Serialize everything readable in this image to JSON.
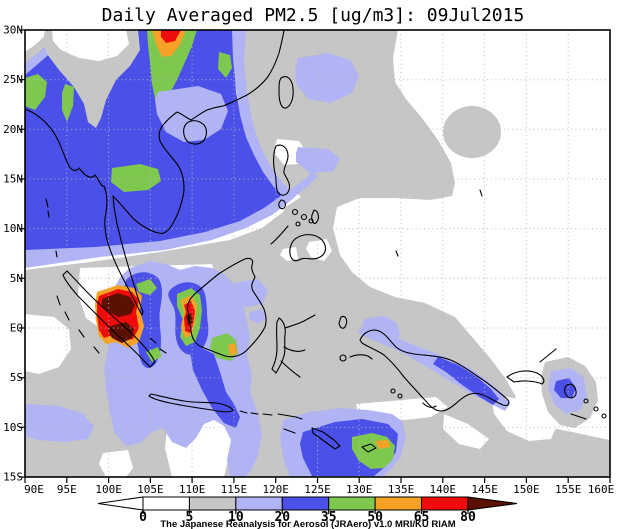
{
  "title": "Daily Averaged PM2.5 [ug/m3]: 09Jul2015",
  "map": {
    "x_axis_labels": [
      "90E",
      "95E",
      "100E",
      "105E",
      "110E",
      "115E",
      "120E",
      "125E",
      "130E",
      "135E",
      "140E",
      "145E",
      "150E",
      "155E",
      "160E"
    ],
    "y_axis_labels": [
      "30N",
      "25N",
      "20N",
      "15N",
      "10N",
      "5N",
      "EQ",
      "5S",
      "10S",
      "15S"
    ]
  },
  "colorbar": {
    "tick_labels": [
      "0",
      "5",
      "10",
      "20",
      "35",
      "50",
      "65",
      "80"
    ],
    "segments": [
      {
        "range": "<0",
        "color": "#ffffff",
        "arrow": "left"
      },
      {
        "range": "0-5",
        "color": "#ffffff"
      },
      {
        "range": "5-10",
        "color": "#c6c6c6"
      },
      {
        "range": "10-20",
        "color": "#b0b4f4"
      },
      {
        "range": "20-35",
        "color": "#4a50e8"
      },
      {
        "range": "35-50",
        "color": "#7ec850"
      },
      {
        "range": "50-65",
        "color": "#f7a226"
      },
      {
        "range": "65-80",
        "color": "#ee0c0c"
      },
      {
        "range": ">80",
        "color": "#5c1000",
        "arrow": "right"
      }
    ],
    "credit": "The Japanese Reanalysis for Aerosol (JRAero) v1.0 MRI/KU RIAM"
  },
  "chart_data": {
    "type": "heatmap",
    "subtype": "filled_contour_map",
    "title": "Daily Averaged PM2.5 [ug/m3]: 09Jul2015",
    "variable": "PM2.5",
    "units": "ug/m3",
    "date": "09Jul2015",
    "lon_range": [
      "90E",
      "160E"
    ],
    "lat_range": [
      "15S",
      "30N"
    ],
    "grid": "5-degree dotted graticule",
    "contour_levels": [
      0,
      5,
      10,
      20,
      35,
      50,
      65,
      80
    ],
    "palette": [
      "#ffffff",
      "#ffffff",
      "#c6c6c6",
      "#b0b4f4",
      "#4a50e8",
      "#7ec850",
      "#f7a226",
      "#ee0c0c",
      "#5c1000"
    ],
    "legend_position": "bottom center",
    "features": [
      {
        "location": "Riau / Singapore / central Sumatra (100-104E, 2N-2S)",
        "pm25": ">80",
        "level_color": "dark red"
      },
      {
        "location": "West Borneo / Kalimantan (108-110E, 2N-1S)",
        "pm25": "65-80",
        "level_color": "red"
      },
      {
        "location": "South Borneo (~113-115E, 1-3S)",
        "pm25": "50-65",
        "level_color": "orange-green"
      },
      {
        "location": "SE China inland (~106-108E, 28-30N)",
        "pm25": "65-80 at top edge",
        "level_color": "red-orange in green band"
      },
      {
        "location": "Central Thailand (~100-105E, 14-16N)",
        "pm25": "35-50",
        "level_color": "green"
      },
      {
        "location": "Left map edge (~90-92E, 22-26N)",
        "pm25": "35-50",
        "level_color": "green"
      },
      {
        "location": "Timor / Banda Sea (~129-134E, 11-14S)",
        "pm25": "50-65 core",
        "level_color": "green with orange sliver"
      },
      {
        "location": "Indochina / Bay of Bengal / S China band (90-120E, 5-30N)",
        "pm25": "20-35",
        "level_color": "blue"
      },
      {
        "location": "East Java plume (~113-115E, 7-9S)",
        "pm25": "20-35",
        "level_color": "blue"
      },
      {
        "location": "North New Guinea coast (~138-145E, 3-6S)",
        "pm25": "20-35",
        "level_color": "blue streak in lavender"
      },
      {
        "location": "Bougainville (~154-156E, 5-7S)",
        "pm25": "20-35",
        "level_color": "blue in lavender"
      },
      {
        "location": "China east coast / Philippines / Maritime continent background",
        "pm25": "5-10",
        "level_color": "gray"
      },
      {
        "location": "NW Pacific east of ~140E north of EQ",
        "pm25": "<5",
        "level_color": "white"
      }
    ]
  }
}
